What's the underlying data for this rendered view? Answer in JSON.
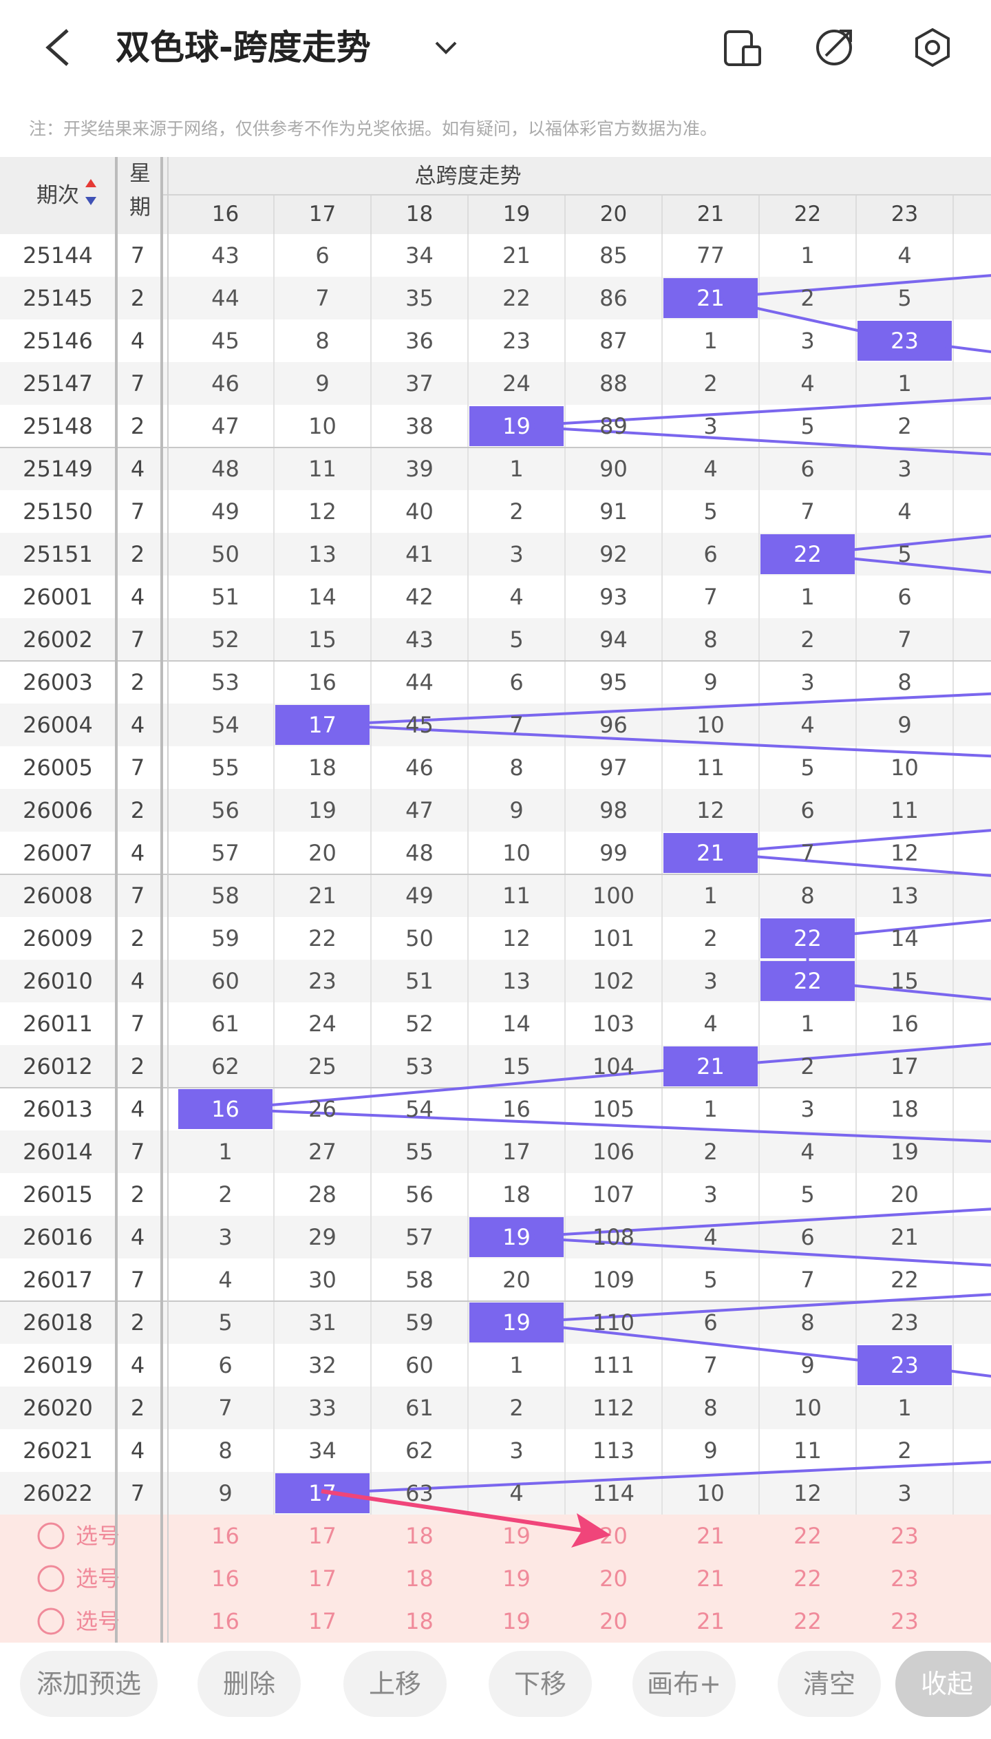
{
  "header": {
    "title": "双色球-跨度走势"
  },
  "note": "注：开奖结果来源于网络，仅供参考不作为兑奖依据。如有疑问，以福体彩官方数据为准。",
  "table": {
    "col_period": "期次",
    "col_week": "星期",
    "group_title": "总跨度走势",
    "columns": [
      16,
      17,
      18,
      19,
      20,
      21,
      22,
      23
    ],
    "rows": [
      {
        "period": "25144",
        "week": 7,
        "values": [
          43,
          6,
          34,
          21,
          85,
          77,
          1,
          4
        ]
      },
      {
        "period": "25145",
        "week": 2,
        "values": [
          44,
          7,
          35,
          22,
          86,
          21,
          2,
          5
        ]
      },
      {
        "period": "25146",
        "week": 4,
        "values": [
          45,
          8,
          36,
          23,
          87,
          1,
          3,
          23
        ]
      },
      {
        "period": "25147",
        "week": 7,
        "values": [
          46,
          9,
          37,
          24,
          88,
          2,
          4,
          1
        ]
      },
      {
        "period": "25148",
        "week": 2,
        "values": [
          47,
          10,
          38,
          19,
          89,
          3,
          5,
          2
        ]
      },
      {
        "period": "25149",
        "week": 4,
        "values": [
          48,
          11,
          39,
          1,
          90,
          4,
          6,
          3
        ]
      },
      {
        "period": "25150",
        "week": 7,
        "values": [
          49,
          12,
          40,
          2,
          91,
          5,
          7,
          4
        ]
      },
      {
        "period": "25151",
        "week": 2,
        "values": [
          50,
          13,
          41,
          3,
          92,
          6,
          22,
          5
        ]
      },
      {
        "period": "26001",
        "week": 4,
        "values": [
          51,
          14,
          42,
          4,
          93,
          7,
          1,
          6
        ]
      },
      {
        "period": "26002",
        "week": 7,
        "values": [
          52,
          15,
          43,
          5,
          94,
          8,
          2,
          7
        ]
      },
      {
        "period": "26003",
        "week": 2,
        "values": [
          53,
          16,
          44,
          6,
          95,
          9,
          3,
          8
        ]
      },
      {
        "period": "26004",
        "week": 4,
        "values": [
          54,
          17,
          45,
          7,
          96,
          10,
          4,
          9
        ]
      },
      {
        "period": "26005",
        "week": 7,
        "values": [
          55,
          18,
          46,
          8,
          97,
          11,
          5,
          10
        ]
      },
      {
        "period": "26006",
        "week": 2,
        "values": [
          56,
          19,
          47,
          9,
          98,
          12,
          6,
          11
        ]
      },
      {
        "period": "26007",
        "week": 4,
        "values": [
          57,
          20,
          48,
          10,
          99,
          21,
          7,
          12
        ]
      },
      {
        "period": "26008",
        "week": 7,
        "values": [
          58,
          21,
          49,
          11,
          100,
          1,
          8,
          13
        ]
      },
      {
        "period": "26009",
        "week": 2,
        "values": [
          59,
          22,
          50,
          12,
          101,
          2,
          22,
          14
        ]
      },
      {
        "period": "26010",
        "week": 4,
        "values": [
          60,
          23,
          51,
          13,
          102,
          3,
          22,
          15
        ]
      },
      {
        "period": "26011",
        "week": 7,
        "values": [
          61,
          24,
          52,
          14,
          103,
          4,
          1,
          16
        ]
      },
      {
        "period": "26012",
        "week": 2,
        "values": [
          62,
          25,
          53,
          15,
          104,
          21,
          2,
          17
        ]
      },
      {
        "period": "26013",
        "week": 4,
        "values": [
          16,
          26,
          54,
          16,
          105,
          1,
          3,
          18
        ]
      },
      {
        "period": "26014",
        "week": 7,
        "values": [
          1,
          27,
          55,
          17,
          106,
          2,
          4,
          19
        ]
      },
      {
        "period": "26015",
        "week": 2,
        "values": [
          2,
          28,
          56,
          18,
          107,
          3,
          5,
          20
        ]
      },
      {
        "period": "26016",
        "week": 4,
        "values": [
          3,
          29,
          57,
          19,
          108,
          4,
          6,
          21
        ]
      },
      {
        "period": "26017",
        "week": 7,
        "values": [
          4,
          30,
          58,
          20,
          109,
          5,
          7,
          22
        ]
      },
      {
        "period": "26018",
        "week": 2,
        "values": [
          5,
          31,
          59,
          19,
          110,
          6,
          8,
          23
        ]
      },
      {
        "period": "26019",
        "week": 4,
        "values": [
          6,
          32,
          60,
          1,
          111,
          7,
          9,
          23
        ]
      },
      {
        "period": "26020",
        "week": 2,
        "values": [
          7,
          33,
          61,
          2,
          112,
          8,
          10,
          1
        ]
      },
      {
        "period": "26021",
        "week": 4,
        "values": [
          8,
          34,
          62,
          3,
          113,
          9,
          11,
          2
        ]
      },
      {
        "period": "26022",
        "week": 7,
        "values": [
          9,
          17,
          63,
          4,
          114,
          10,
          12,
          3
        ]
      }
    ],
    "select_rows": [
      {
        "label": "选号",
        "values": [
          16,
          17,
          18,
          19,
          20,
          21,
          22,
          23
        ]
      },
      {
        "label": "选号",
        "values": [
          16,
          17,
          18,
          19,
          20,
          21,
          22,
          23
        ]
      },
      {
        "label": "选号",
        "values": [
          16,
          17,
          18,
          19,
          20,
          21,
          22,
          23
        ]
      }
    ]
  },
  "buttons": [
    "添加预选",
    "删除",
    "上移",
    "下移",
    "画布+",
    "清空",
    "收起"
  ]
}
